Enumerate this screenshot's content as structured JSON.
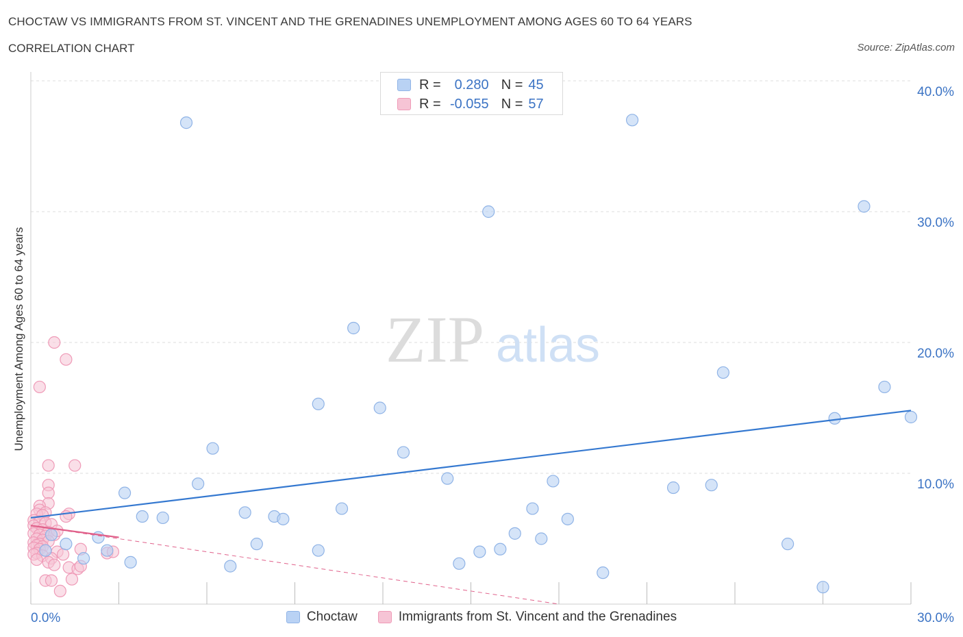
{
  "header": {
    "title": "CHOCTAW VS IMMIGRANTS FROM ST. VINCENT AND THE GRENADINES UNEMPLOYMENT AMONG AGES 60 TO 64 YEARS",
    "subtitle": "CORRELATION CHART",
    "source": "Source: ZipAtlas.com"
  },
  "watermark": {
    "zip": "ZIP",
    "atlas": "atlas"
  },
  "legend": {
    "rows": [
      {
        "r_label": "R =",
        "r_value": "0.280",
        "n_label": "N =",
        "n_value": "45"
      },
      {
        "r_label": "R =",
        "r_value": "-0.055",
        "n_label": "N =",
        "n_value": "57"
      }
    ]
  },
  "bottom_legend": {
    "series_a": "Choctaw",
    "series_b": "Immigrants from St. Vincent and the Grenadines"
  },
  "colors": {
    "blue_fill": "#b9d2f4",
    "blue_stroke": "#8fb3e6",
    "blue_line": "#3478d0",
    "pink_fill": "#f6c4d5",
    "pink_stroke": "#ef9ab7",
    "pink_line": "#e0608a",
    "grid": "#dddddd",
    "tick_text": "#3b73c4"
  },
  "chart_data": {
    "type": "scatter",
    "title": "CHOCTAW VS IMMIGRANTS FROM ST. VINCENT AND THE GRENADINES UNEMPLOYMENT AMONG AGES 60 TO 64 YEARS",
    "xlabel": "",
    "ylabel": "Unemployment Among Ages 60 to 64 years",
    "xlim": [
      0,
      30
    ],
    "ylim": [
      0,
      40
    ],
    "x_tick_labels": [
      "0.0%",
      "30.0%"
    ],
    "y_ticks": [
      10,
      20,
      30,
      40
    ],
    "y_tick_labels": [
      "10.0%",
      "20.0%",
      "30.0%",
      "40.0%"
    ],
    "grid": true,
    "legend_position": "top-center",
    "series": [
      {
        "name": "Choctaw",
        "R": 0.28,
        "N": 45,
        "trend": {
          "x": [
            0,
            30
          ],
          "y": [
            6.6,
            14.8
          ]
        },
        "points": [
          [
            5.3,
            36.8
          ],
          [
            20.5,
            37.0
          ],
          [
            15.6,
            30.0
          ],
          [
            28.4,
            30.4
          ],
          [
            11.0,
            21.1
          ],
          [
            23.6,
            17.7
          ],
          [
            29.1,
            16.6
          ],
          [
            9.8,
            15.3
          ],
          [
            11.9,
            15.0
          ],
          [
            27.4,
            14.2
          ],
          [
            30.0,
            14.3
          ],
          [
            6.2,
            11.9
          ],
          [
            12.7,
            11.6
          ],
          [
            3.2,
            8.5
          ],
          [
            5.7,
            9.2
          ],
          [
            14.2,
            9.6
          ],
          [
            17.8,
            9.4
          ],
          [
            21.9,
            8.9
          ],
          [
            23.2,
            9.1
          ],
          [
            3.8,
            6.7
          ],
          [
            4.5,
            6.6
          ],
          [
            7.3,
            7.0
          ],
          [
            8.3,
            6.7
          ],
          [
            8.6,
            6.5
          ],
          [
            10.6,
            7.3
          ],
          [
            17.1,
            7.3
          ],
          [
            18.3,
            6.5
          ],
          [
            2.3,
            5.1
          ],
          [
            1.2,
            4.6
          ],
          [
            0.5,
            4.1
          ],
          [
            1.8,
            3.5
          ],
          [
            2.6,
            4.1
          ],
          [
            3.4,
            3.2
          ],
          [
            7.7,
            4.6
          ],
          [
            9.8,
            4.1
          ],
          [
            15.3,
            4.0
          ],
          [
            16.0,
            4.2
          ],
          [
            16.5,
            5.4
          ],
          [
            17.4,
            5.0
          ],
          [
            25.8,
            4.6
          ],
          [
            6.8,
            2.9
          ],
          [
            14.6,
            3.1
          ],
          [
            19.5,
            2.4
          ],
          [
            27.0,
            1.3
          ],
          [
            0.7,
            5.3
          ]
        ]
      },
      {
        "name": "Immigrants from St. Vincent and the Grenadines",
        "R": -0.055,
        "N": 57,
        "trend": {
          "x": [
            0,
            3.0
          ],
          "y": [
            6.0,
            5.1
          ]
        },
        "trend_extended": {
          "x": [
            0,
            18.0
          ],
          "y": [
            6.0,
            0.0
          ]
        },
        "points": [
          [
            0.3,
            16.6
          ],
          [
            0.8,
            20.0
          ],
          [
            1.2,
            18.7
          ],
          [
            0.6,
            10.6
          ],
          [
            1.5,
            10.6
          ],
          [
            0.6,
            9.1
          ],
          [
            0.6,
            8.5
          ],
          [
            0.6,
            7.7
          ],
          [
            0.3,
            7.5
          ],
          [
            0.3,
            7.2
          ],
          [
            0.5,
            7.0
          ],
          [
            0.2,
            6.9
          ],
          [
            0.4,
            6.8
          ],
          [
            1.3,
            6.9
          ],
          [
            1.2,
            6.7
          ],
          [
            0.1,
            6.4
          ],
          [
            0.3,
            6.3
          ],
          [
            0.5,
            6.2
          ],
          [
            0.7,
            6.1
          ],
          [
            0.1,
            6.0
          ],
          [
            0.2,
            5.8
          ],
          [
            0.4,
            5.7
          ],
          [
            0.6,
            5.5
          ],
          [
            0.1,
            5.4
          ],
          [
            0.3,
            5.3
          ],
          [
            0.5,
            5.2
          ],
          [
            0.8,
            5.3
          ],
          [
            0.2,
            5.0
          ],
          [
            0.4,
            4.9
          ],
          [
            0.6,
            4.8
          ],
          [
            0.1,
            4.7
          ],
          [
            0.3,
            4.6
          ],
          [
            0.2,
            4.5
          ],
          [
            0.4,
            4.4
          ],
          [
            0.1,
            4.3
          ],
          [
            0.3,
            4.2
          ],
          [
            0.5,
            4.1
          ],
          [
            0.9,
            4.0
          ],
          [
            0.2,
            3.9
          ],
          [
            0.1,
            3.8
          ],
          [
            0.4,
            3.7
          ],
          [
            1.1,
            3.8
          ],
          [
            1.7,
            4.2
          ],
          [
            2.6,
            3.9
          ],
          [
            2.8,
            4.0
          ],
          [
            0.7,
            3.5
          ],
          [
            0.6,
            3.2
          ],
          [
            0.2,
            3.4
          ],
          [
            1.3,
            2.8
          ],
          [
            1.6,
            2.7
          ],
          [
            1.7,
            2.9
          ],
          [
            0.5,
            1.8
          ],
          [
            0.7,
            1.8
          ],
          [
            1.4,
            1.9
          ],
          [
            1.0,
            1.0
          ],
          [
            0.8,
            3.0
          ],
          [
            0.9,
            5.6
          ]
        ]
      }
    ]
  }
}
